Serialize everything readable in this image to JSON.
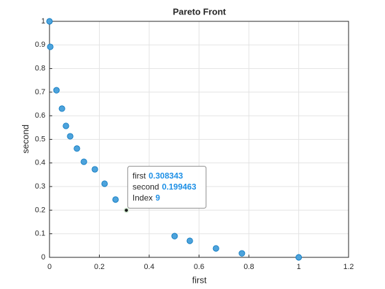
{
  "chart_data": {
    "type": "scatter",
    "title": "Pareto Front",
    "xlabel": "first",
    "ylabel": "second",
    "x": [
      0,
      0.003,
      0.028,
      0.05,
      0.066,
      0.083,
      0.11,
      0.138,
      0.308343,
      0.182,
      0.221,
      0.265,
      0.502,
      0.563,
      0.668,
      0.772,
      1
    ],
    "y": [
      1,
      0.892,
      0.708,
      0.63,
      0.557,
      0.513,
      0.461,
      0.405,
      0.199463,
      0.373,
      0.312,
      0.245,
      0.09,
      0.07,
      0.038,
      0.017,
      0
    ],
    "color": "#4da3dc",
    "edge_color": "#0072bd",
    "xlim": [
      0,
      1.2
    ],
    "xticks": [
      0,
      0.2,
      0.4,
      0.6,
      0.8,
      1,
      1.2
    ],
    "ylim": [
      0,
      1
    ],
    "yticks": [
      0,
      0.1,
      0.2,
      0.3,
      0.4,
      0.5,
      0.6,
      0.7,
      0.8,
      0.9,
      1
    ],
    "grid": true,
    "datatip": {
      "index_label": "Index",
      "index": 9
    }
  }
}
